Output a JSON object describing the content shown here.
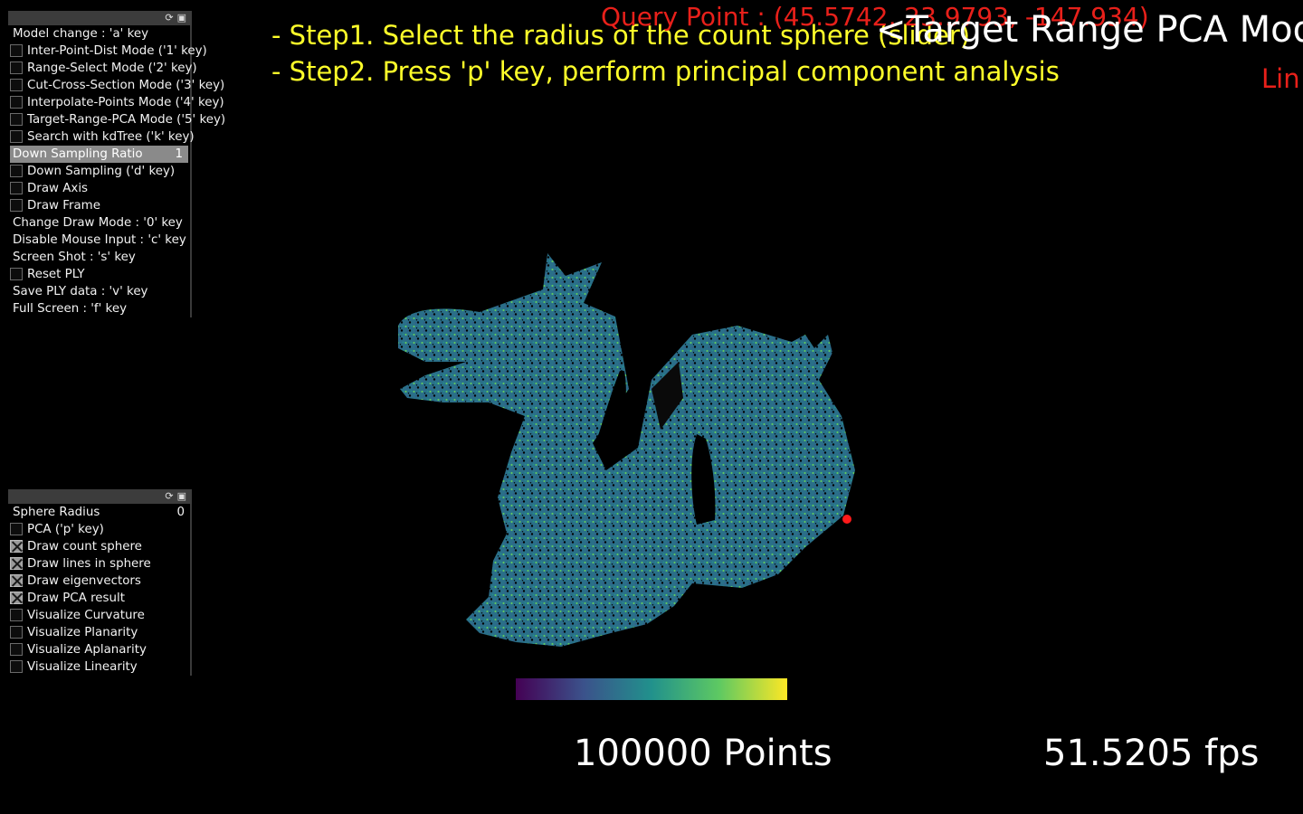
{
  "panel1": {
    "items": [
      {
        "label": "Model change : 'a' key",
        "type": "text"
      },
      {
        "label": "Inter-Point-Dist Mode ('1' key)",
        "type": "checkbox",
        "checked": false
      },
      {
        "label": "Range-Select Mode ('2' key)",
        "type": "checkbox",
        "checked": false
      },
      {
        "label": "Cut-Cross-Section Mode ('3' key)",
        "type": "checkbox",
        "checked": false
      },
      {
        "label": "Interpolate-Points Mode ('4' key)",
        "type": "checkbox",
        "checked": false
      },
      {
        "label": "Target-Range-PCA Mode ('5' key)",
        "type": "checkbox",
        "checked": false
      },
      {
        "label": "Search with kdTree ('k' key)",
        "type": "checkbox",
        "checked": false
      },
      {
        "label": "Down Sampling Ratio",
        "type": "slider",
        "value": "1"
      },
      {
        "label": "Down Sampling ('d' key)",
        "type": "checkbox",
        "checked": false
      },
      {
        "label": "Draw Axis",
        "type": "checkbox",
        "checked": false
      },
      {
        "label": "Draw Frame",
        "type": "checkbox",
        "checked": false
      },
      {
        "label": "Change Draw Mode : '0' key",
        "type": "text"
      },
      {
        "label": "Disable Mouse Input : 'c' key",
        "type": "text"
      },
      {
        "label": "Screen Shot : 's' key",
        "type": "text"
      },
      {
        "label": "Reset PLY",
        "type": "checkbox",
        "checked": false
      },
      {
        "label": "Save PLY data : 'v' key",
        "type": "text"
      },
      {
        "label": "Full Screen : 'f' key",
        "type": "text"
      }
    ]
  },
  "panel2": {
    "items": [
      {
        "label": "Sphere Radius",
        "type": "value",
        "value": "0"
      },
      {
        "label": "PCA ('p' key)",
        "type": "checkbox",
        "checked": false
      },
      {
        "label": "Draw count sphere",
        "type": "checkbox",
        "checked": true
      },
      {
        "label": "Draw lines in sphere",
        "type": "checkbox",
        "checked": true
      },
      {
        "label": "Draw eigenvectors",
        "type": "checkbox",
        "checked": true
      },
      {
        "label": "Draw PCA result",
        "type": "checkbox",
        "checked": true
      },
      {
        "label": "Visualize Curvature",
        "type": "checkbox",
        "checked": false
      },
      {
        "label": "Visualize Planarity",
        "type": "checkbox",
        "checked": false
      },
      {
        "label": "Visualize Aplanarity",
        "type": "checkbox",
        "checked": false
      },
      {
        "label": "Visualize Linearity",
        "type": "checkbox",
        "checked": false
      }
    ]
  },
  "overlay": {
    "step1": "- Step1. Select the radius of the count sphere (slider)",
    "step2": "- Step2. Press 'p' key, perform principal component analysis",
    "query_point": "Query Point : (45.5742, 23.9793, -147.934)",
    "mode_title": "<Target Range PCA Mode>",
    "mode_sub": "Lin",
    "points": "100000 Points",
    "fps": "51.5205 fps"
  },
  "colors": {
    "step_text": "#ffff2a",
    "query_text": "#e8201a",
    "colormap": [
      "#440154",
      "#3b528b",
      "#21918c",
      "#5ec962",
      "#fde725"
    ],
    "query_marker": "#ff1a1a"
  },
  "icons": {
    "panel_header": [
      "refresh-icon",
      "save-icon"
    ]
  }
}
